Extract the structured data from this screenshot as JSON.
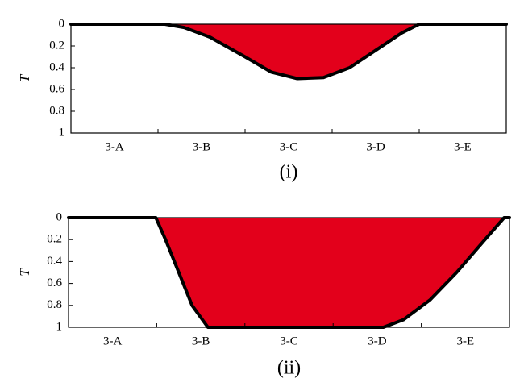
{
  "chart_data": [
    {
      "type": "area",
      "caption": "(i)",
      "ylabel": "T",
      "categories": [
        "3-A",
        "3-B",
        "3-C",
        "3-D",
        "3-E"
      ],
      "xlim": [
        0,
        5
      ],
      "ylim": [
        1,
        0
      ],
      "yticks": [
        0,
        0.2,
        0.4,
        0.6,
        0.8,
        1
      ],
      "color": "#e3001b",
      "x": [
        0,
        1.08,
        1.3,
        1.6,
        2.0,
        2.3,
        2.6,
        2.9,
        3.2,
        3.5,
        3.8,
        4.0,
        5
      ],
      "values": [
        0,
        0,
        0.03,
        0.12,
        0.3,
        0.44,
        0.5,
        0.49,
        0.4,
        0.24,
        0.08,
        0,
        0
      ]
    },
    {
      "type": "area",
      "caption": "(ii)",
      "ylabel": "T",
      "categories": [
        "3-A",
        "3-B",
        "3-C",
        "3-D",
        "3-E"
      ],
      "xlim": [
        0,
        5
      ],
      "ylim": [
        1,
        0
      ],
      "yticks": [
        0,
        0.2,
        0.4,
        0.6,
        0.8,
        1
      ],
      "color": "#e3001b",
      "x": [
        0,
        0.99,
        1.1,
        1.25,
        1.4,
        1.58,
        3.57,
        3.8,
        4.1,
        4.4,
        4.7,
        4.94,
        5
      ],
      "values": [
        0,
        0,
        0.2,
        0.5,
        0.8,
        1,
        1,
        0.93,
        0.75,
        0.5,
        0.22,
        0,
        0
      ]
    }
  ]
}
